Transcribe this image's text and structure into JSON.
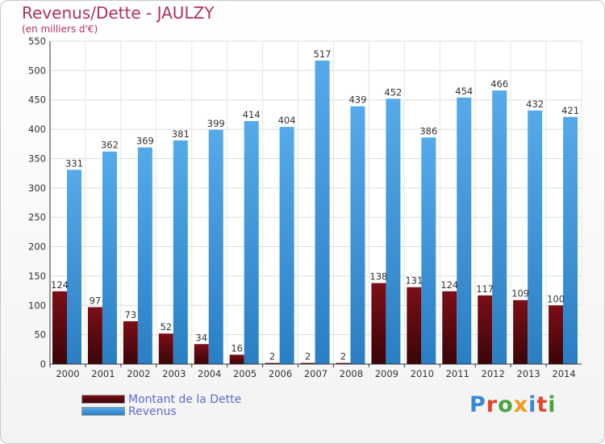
{
  "title": "Revenus/Dette - JAULZY",
  "subtitle": "(en milliers d'€)",
  "logo_text": "Proxiti",
  "colors": {
    "dette": "#6e0b12",
    "revenus": "#3a97df",
    "title": "#b0305e",
    "legend_text": "#5a6ec8"
  },
  "legend": [
    {
      "label": "Montant de la Dette",
      "color": "#6e0b12"
    },
    {
      "label": "Revenus",
      "color": "#3a97df"
    }
  ],
  "chart_data": {
    "type": "bar",
    "categories": [
      "2000",
      "2001",
      "2002",
      "2003",
      "2004",
      "2005",
      "2006",
      "2007",
      "2008",
      "2009",
      "2010",
      "2011",
      "2012",
      "2013",
      "2014"
    ],
    "series": [
      {
        "name": "Montant de la Dette",
        "values": [
          124,
          97,
          73,
          52,
          34,
          16,
          2,
          2,
          2,
          138,
          131,
          124,
          117,
          109,
          100
        ]
      },
      {
        "name": "Revenus",
        "values": [
          331,
          362,
          369,
          381,
          399,
          414,
          404,
          517,
          439,
          452,
          386,
          454,
          466,
          432,
          421
        ]
      }
    ],
    "ylim": [
      0,
      550
    ],
    "yticks": [
      0,
      50,
      100,
      150,
      200,
      250,
      300,
      350,
      400,
      450,
      500,
      550
    ],
    "grid": true
  }
}
